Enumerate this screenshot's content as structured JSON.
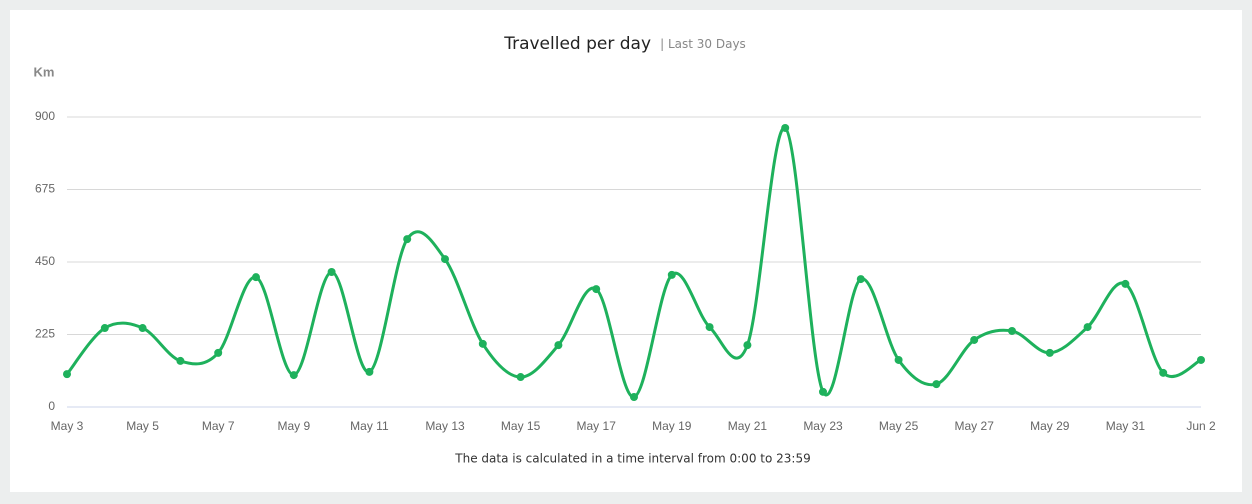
{
  "chart_data": {
    "type": "line",
    "title": "Travelled per day",
    "subtitle": "| Last 30 Days",
    "y_label": "Km",
    "note": "The data is calculated in a time interval from 0:00 to 23:59",
    "categories": [
      "May 3",
      null,
      "May 5",
      null,
      "May 7",
      null,
      "May 9",
      null,
      "May 11",
      null,
      "May 13",
      null,
      "May 15",
      null,
      "May 17",
      null,
      "May 19",
      null,
      "May 21",
      null,
      "May 23",
      null,
      "May 25",
      null,
      "May 27",
      null,
      "May 29",
      null,
      "May 31",
      null,
      "Jun 2"
    ],
    "series": [
      {
        "name": "Km",
        "color": "#1eb15c",
        "values": [
          102,
          245,
          245,
          143,
          168,
          403,
          99,
          419,
          109,
          521,
          459,
          196,
          93,
          192,
          366,
          31,
          410,
          248,
          192,
          866,
          47,
          397,
          146,
          71,
          208,
          236,
          168,
          248,
          382,
          106,
          146
        ]
      }
    ],
    "ylim": [
      0,
      900
    ],
    "yticks": [
      0,
      225,
      450,
      675,
      900
    ],
    "grid": true,
    "smooth": true
  }
}
